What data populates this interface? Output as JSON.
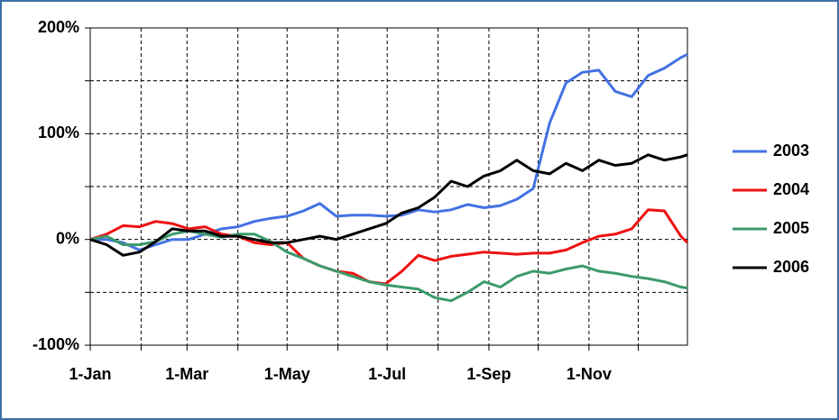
{
  "chart_data": {
    "type": "line",
    "x": [
      0,
      10,
      20,
      30,
      40,
      50,
      60,
      70,
      80,
      90,
      100,
      110,
      120,
      130,
      140,
      150,
      160,
      170,
      180,
      190,
      200,
      210,
      220,
      230,
      240,
      250,
      260,
      270,
      280,
      290,
      300,
      310,
      320,
      330,
      340,
      350,
      360,
      364
    ],
    "xlim": [
      0,
      364
    ],
    "xticks": [
      {
        "value": 0,
        "label": "1-Jan"
      },
      {
        "value": 59,
        "label": "1-Mar"
      },
      {
        "value": 120,
        "label": "1-May"
      },
      {
        "value": 181,
        "label": "1-Jul"
      },
      {
        "value": 243,
        "label": "1-Sep"
      },
      {
        "value": 304,
        "label": "1-Nov"
      }
    ],
    "x_gridlines": [
      31,
      90,
      151,
      212,
      273,
      334
    ],
    "ylim": [
      -100,
      200
    ],
    "yticks": [
      {
        "value": -100,
        "label": "-100%"
      },
      {
        "value": 0,
        "label": "0%"
      },
      {
        "value": 100,
        "label": "100%"
      },
      {
        "value": 200,
        "label": "200%"
      }
    ],
    "y_gridlines": [
      -50,
      50,
      150
    ],
    "grid": true,
    "legend": "right",
    "series": [
      {
        "name": "2003",
        "color": "#4472e4",
        "values": [
          0,
          0,
          -3,
          -10,
          -5,
          0,
          0,
          5,
          10,
          12,
          17,
          20,
          22,
          27,
          34,
          22,
          23,
          23,
          22,
          23,
          28,
          26,
          28,
          33,
          30,
          32,
          38,
          48,
          110,
          148,
          158,
          160,
          140,
          135,
          155,
          162,
          172,
          175
        ]
      },
      {
        "name": "2004",
        "color": "#ee1111",
        "values": [
          0,
          5,
          13,
          12,
          17,
          15,
          10,
          12,
          5,
          3,
          -3,
          -5,
          -3,
          -18,
          -25,
          -30,
          -32,
          -40,
          -42,
          -30,
          -15,
          -20,
          -16,
          -14,
          -12,
          -13,
          -14,
          -13,
          -13,
          -10,
          -3,
          3,
          5,
          10,
          28,
          27,
          3,
          -3
        ]
      },
      {
        "name": "2005",
        "color": "#3c9a6b",
        "values": [
          0,
          3,
          -5,
          -5,
          -2,
          5,
          8,
          5,
          2,
          5,
          5,
          -2,
          -12,
          -18,
          -25,
          -30,
          -35,
          -40,
          -43,
          -45,
          -47,
          -55,
          -58,
          -50,
          -40,
          -45,
          -35,
          -30,
          -32,
          -28,
          -25,
          -30,
          -32,
          -35,
          -37,
          -40,
          -45,
          -46
        ]
      },
      {
        "name": "2006",
        "color": "#000000",
        "values": [
          0,
          -5,
          -15,
          -12,
          -2,
          10,
          8,
          8,
          3,
          3,
          0,
          -3,
          -3,
          0,
          3,
          0,
          5,
          10,
          15,
          25,
          30,
          40,
          55,
          50,
          60,
          65,
          75,
          65,
          62,
          72,
          65,
          75,
          70,
          72,
          80,
          75,
          78,
          80
        ]
      }
    ]
  }
}
